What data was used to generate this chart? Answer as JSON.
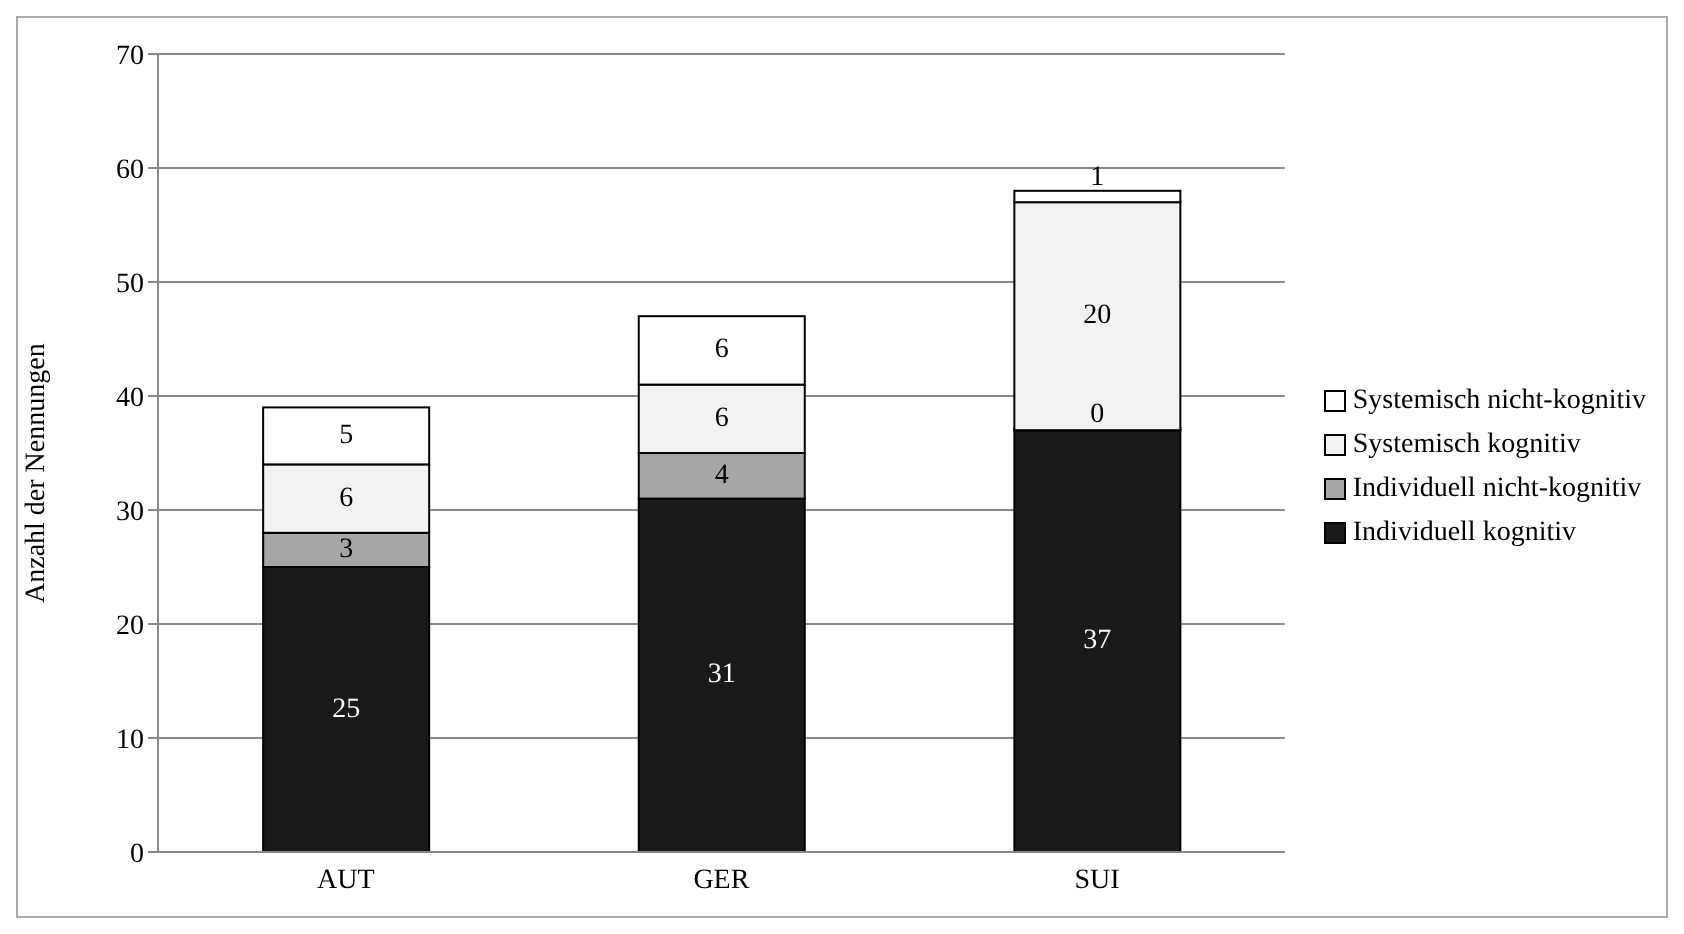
{
  "chart_data": {
    "type": "bar",
    "stacked": true,
    "ylabel": "Anzahl der Nennungen",
    "categories": [
      "AUT",
      "GER",
      "SUI"
    ],
    "series": [
      {
        "name": "Individuell kognitiv",
        "color": "#1a1a1a",
        "values": [
          25,
          31,
          37
        ]
      },
      {
        "name": "Individuell nicht-kognitiv",
        "color": "#a6a6a6",
        "values": [
          3,
          4,
          0
        ]
      },
      {
        "name": "Systemisch kognitiv",
        "color": "#f2f2f2",
        "values": [
          6,
          6,
          20
        ]
      },
      {
        "name": "Systemisch nicht-kognitiv",
        "color": "#ffffff",
        "values": [
          5,
          6,
          1
        ]
      }
    ],
    "ylim": [
      0,
      70
    ],
    "yticks": [
      0,
      10,
      20,
      30,
      40,
      50,
      60,
      70
    ],
    "grid": "y",
    "legend": "right",
    "data_labels": true
  }
}
